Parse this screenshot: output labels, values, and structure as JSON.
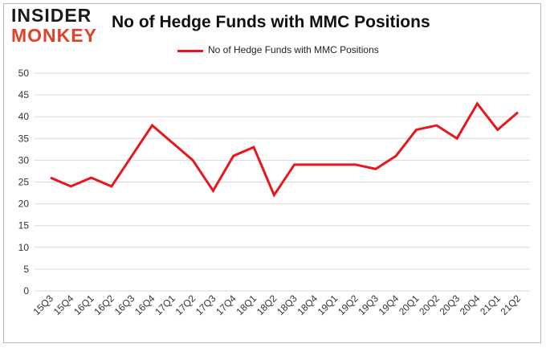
{
  "logo": {
    "line1": "INSIDER",
    "line2": "MONKEY"
  },
  "colors": {
    "series": "#e8171b",
    "grid": "#d9d9d9",
    "logo_accent": "#e0412b"
  },
  "chart_data": {
    "type": "line",
    "title": "No of Hedge Funds with MMC Positions",
    "xlabel": "",
    "ylabel": "",
    "ylim": [
      0,
      50
    ],
    "yticks": [
      0,
      5,
      10,
      15,
      20,
      25,
      30,
      35,
      40,
      45,
      50
    ],
    "grid": true,
    "legend_position": "top-center",
    "categories": [
      "15Q3",
      "15Q4",
      "16Q1",
      "16Q2",
      "16Q3",
      "16Q4",
      "17Q1",
      "17Q2",
      "17Q3",
      "17Q4",
      "18Q1",
      "18Q2",
      "18Q3",
      "18Q4",
      "19Q1",
      "19Q2",
      "19Q3",
      "19Q4",
      "20Q1",
      "20Q2",
      "20Q3",
      "20Q4",
      "21Q1",
      "21Q2"
    ],
    "series": [
      {
        "name": "No of Hedge Funds with MMC Positions",
        "values": [
          26,
          24,
          26,
          24,
          31,
          38,
          34,
          30,
          23,
          31,
          33,
          22,
          29,
          29,
          29,
          29,
          28,
          31,
          37,
          38,
          35,
          43,
          37,
          41
        ]
      }
    ]
  }
}
